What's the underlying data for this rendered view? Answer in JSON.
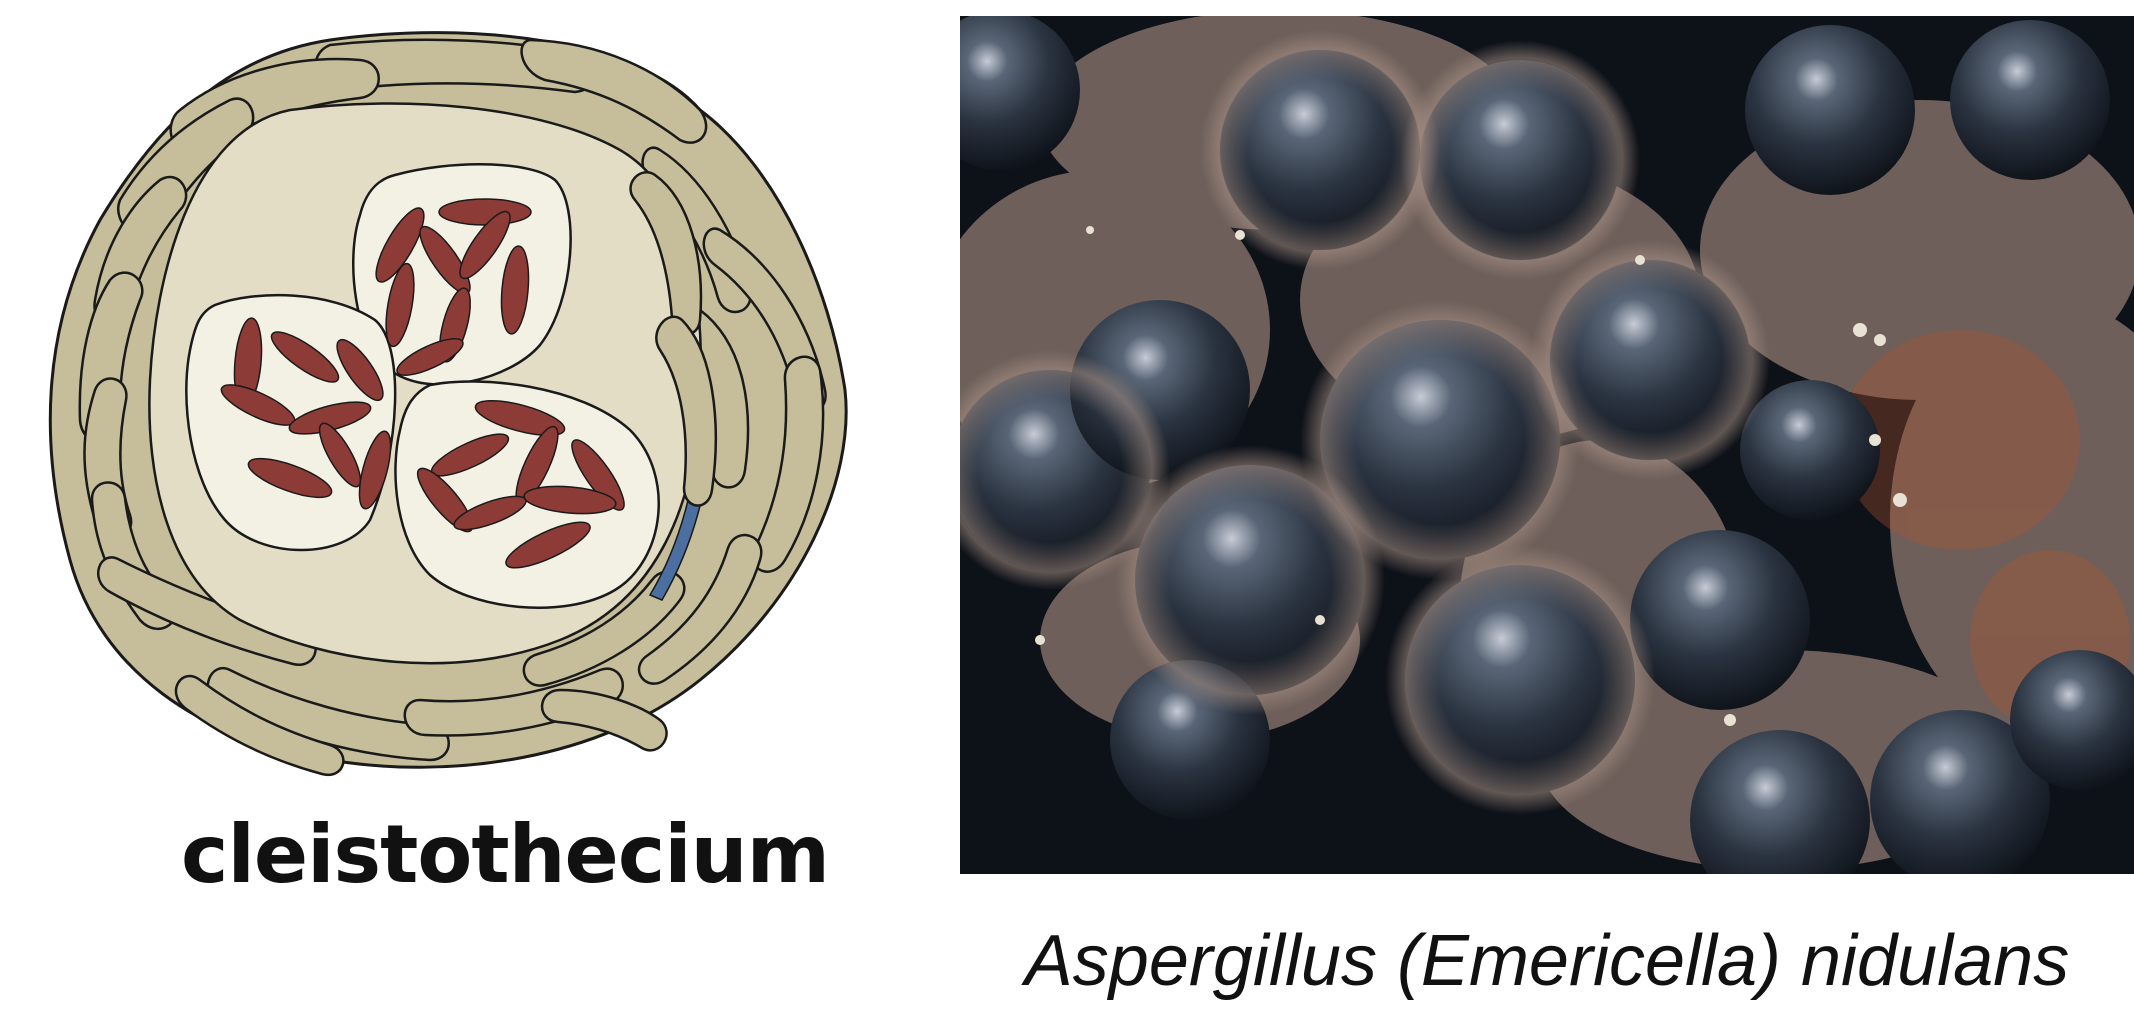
{
  "labels": {
    "left": "cleistothecium",
    "right": "Aspergillus (Emericella) nidulans"
  },
  "colors": {
    "wall_cell": "#c6bd9b",
    "wall_outline": "#1a1a1a",
    "interior": "#e3ddc6",
    "ascus": "#f3f0e4",
    "ascospore": "#8c3b37",
    "accent_blue": "#4a6fa0",
    "photo_dark": "#0d1118",
    "photo_tan": "#9a857a"
  },
  "icons": {
    "diagram": "cleistothecium-diagram",
    "photo": "micrograph-photo"
  }
}
